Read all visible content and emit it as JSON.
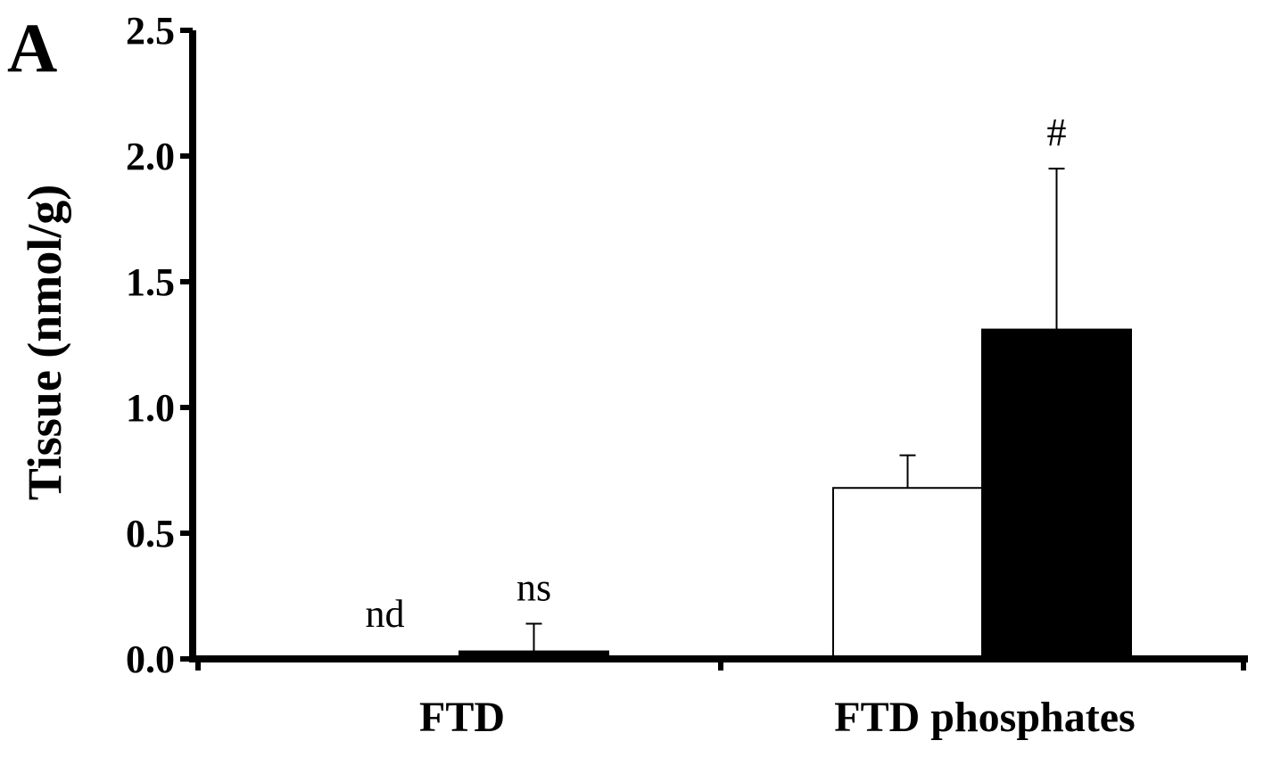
{
  "panel_label": "A",
  "chart_data": {
    "type": "bar",
    "ylabel": "Tissue (nmol/g)",
    "xlabel": "",
    "ylim": [
      0,
      2.5
    ],
    "yticks": [
      0.0,
      0.5,
      1.0,
      1.5,
      2.0,
      2.5
    ],
    "ytick_labels": [
      "0.0",
      "0.5",
      "1.0",
      "1.5",
      "2.0",
      "2.5"
    ],
    "categories": [
      "FTD",
      "FTD phosphates"
    ],
    "grid": false,
    "series": [
      {
        "color": "#ffffff",
        "values": [
          0.0,
          0.68
        ],
        "errors": [
          0.0,
          0.13
        ]
      },
      {
        "color": "#000000",
        "values": [
          0.03,
          1.31
        ],
        "errors": [
          0.11,
          0.64
        ]
      }
    ],
    "annotations": [
      {
        "category": 0,
        "series": 0,
        "text": "nd"
      },
      {
        "category": 0,
        "series": 1,
        "text": "ns"
      },
      {
        "category": 1,
        "series": 1,
        "text": "#"
      }
    ]
  }
}
